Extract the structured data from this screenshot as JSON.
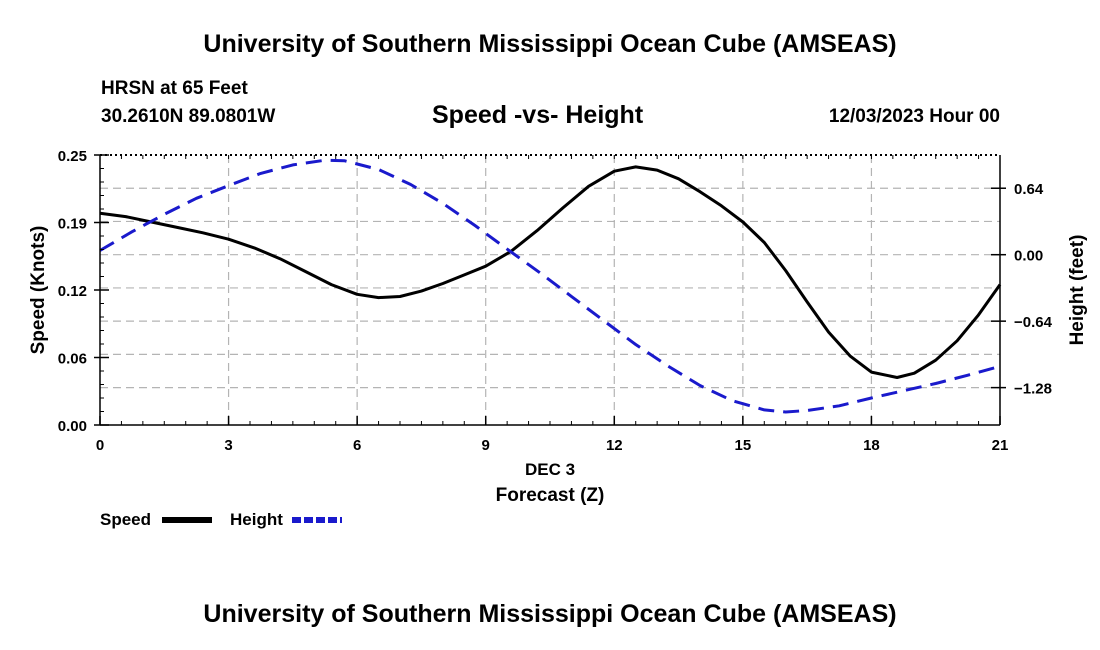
{
  "header": {
    "title": "University of Southern Mississippi Ocean Cube (AMSEAS)",
    "station": "HRSN at 65 Feet",
    "coords": "30.2610N  89.0801W",
    "subtitle": "Speed -vs- Height",
    "datetime": "12/03/2023 Hour 00"
  },
  "footer": {
    "title": "University of Southern Mississippi Ocean Cube (AMSEAS)"
  },
  "chart_data": {
    "type": "line",
    "title": "Speed -vs- Height",
    "xlabel_top": "DEC 3",
    "xlabel": "Forecast (Z)",
    "ylabel": "Speed (Knots)",
    "y2label": "Height (feet)",
    "xlim": [
      0,
      21
    ],
    "ylim": [
      0,
      0.25
    ],
    "y2lim": [
      -1.64,
      0.96
    ],
    "x_ticks": [
      0,
      3,
      6,
      9,
      12,
      15,
      18,
      21
    ],
    "x_tick_labels": [
      "0",
      "3",
      "6",
      "9",
      "12",
      "15",
      "18",
      "21"
    ],
    "y_ticks": [
      0,
      0.0625,
      0.125,
      0.1875,
      0.25
    ],
    "y_tick_labels": [
      "0.00",
      "0.06",
      "0.12",
      "0.19",
      "0.25"
    ],
    "y2_ticks": [
      -1.28,
      -0.64,
      0.0,
      0.64
    ],
    "y2_tick_labels": [
      "−1.28",
      "−0.64",
      "0.00",
      "0.64"
    ],
    "grid": true,
    "legend": {
      "placement": "bottom-left",
      "entries": [
        "Speed",
        "Height"
      ]
    },
    "series": [
      {
        "name": "Speed",
        "axis": "left",
        "color": "#000000",
        "dash": "solid",
        "x": [
          0,
          0.6,
          1.2,
          1.8,
          2.4,
          3.0,
          3.6,
          4.2,
          4.8,
          5.4,
          6.0,
          6.5,
          7.0,
          7.5,
          8.0,
          8.5,
          9.0,
          9.6,
          10.2,
          10.8,
          11.4,
          12.0,
          12.5,
          13.0,
          13.5,
          14.0,
          14.5,
          15.0,
          15.5,
          16.0,
          16.5,
          17.0,
          17.5,
          18.0,
          18.6,
          19.0,
          19.5,
          20.0,
          20.5,
          21.0
        ],
        "values": [
          0.196,
          0.193,
          0.188,
          0.183,
          0.178,
          0.172,
          0.164,
          0.154,
          0.142,
          0.13,
          0.121,
          0.118,
          0.119,
          0.124,
          0.131,
          0.139,
          0.147,
          0.161,
          0.18,
          0.201,
          0.221,
          0.235,
          0.239,
          0.236,
          0.228,
          0.216,
          0.203,
          0.188,
          0.169,
          0.143,
          0.114,
          0.086,
          0.064,
          0.049,
          0.044,
          0.048,
          0.06,
          0.078,
          0.102,
          0.13
        ]
      },
      {
        "name": "Height",
        "axis": "right",
        "color": "#1a1acc",
        "dash": "dashed",
        "x": [
          0,
          0.75,
          1.5,
          2.25,
          3.0,
          3.75,
          4.5,
          5.25,
          5.7,
          6.5,
          7.25,
          8.0,
          8.75,
          9.5,
          10.25,
          11.0,
          11.75,
          12.5,
          13.25,
          14.0,
          14.75,
          15.5,
          16.0,
          16.5,
          17.25,
          18.0,
          18.75,
          19.5,
          20.25,
          21.0
        ],
        "values": [
          0.04,
          0.221,
          0.389,
          0.543,
          0.665,
          0.783,
          0.865,
          0.91,
          0.905,
          0.82,
          0.676,
          0.494,
          0.281,
          0.054,
          -0.17,
          -0.402,
          -0.635,
          -0.865,
          -1.072,
          -1.26,
          -1.405,
          -1.495,
          -1.515,
          -1.5,
          -1.455,
          -1.38,
          -1.31,
          -1.24,
          -1.16,
          -1.075
        ]
      }
    ]
  }
}
